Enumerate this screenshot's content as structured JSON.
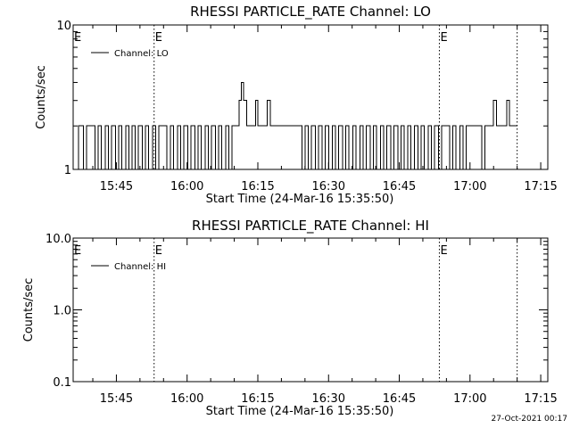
{
  "footer_date": "27-Oct-2021 00:17",
  "chart_data": [
    {
      "type": "line",
      "title": "RHESSI PARTICLE_RATE Channel: LO",
      "xlabel": "Start Time (24-Mar-16 15:35:50)",
      "ylabel": "Counts/sec",
      "y_scale": "log",
      "ylim": [
        1,
        10
      ],
      "y_tick_labels": [
        "1",
        "10"
      ],
      "x_tick_labels": [
        "15:45",
        "16:00",
        "16:15",
        "16:30",
        "16:45",
        "17:00",
        "17:15"
      ],
      "xlim": [
        "15:35:50",
        "17:16:30"
      ],
      "markers": [
        {
          "time": "15:53:00",
          "label": "E"
        },
        {
          "time": "16:53:30",
          "label": "E"
        },
        {
          "time": "17:10:00",
          "label": ""
        }
      ],
      "legend": {
        "position": "top-left",
        "entries": [
          "Channel: LO"
        ]
      },
      "series": [
        {
          "name": "Channel: LO",
          "step_data": [
            [
              "15:35:50",
              1
            ],
            [
              "15:37:00",
              2
            ],
            [
              "15:38:00",
              1
            ],
            [
              "15:38:40",
              2
            ],
            [
              "15:40:30",
              1
            ],
            [
              "15:41:10",
              2
            ],
            [
              "15:41:50",
              1
            ],
            [
              "15:42:40",
              2
            ],
            [
              "15:43:20",
              1
            ],
            [
              "15:44:00",
              2
            ],
            [
              "15:44:50",
              1
            ],
            [
              "15:45:30",
              2
            ],
            [
              "15:46:10",
              1
            ],
            [
              "15:47:00",
              2
            ],
            [
              "15:47:40",
              1
            ],
            [
              "15:48:20",
              2
            ],
            [
              "15:49:00",
              1
            ],
            [
              "15:49:40",
              2
            ],
            [
              "15:50:30",
              1
            ],
            [
              "15:51:10",
              2
            ],
            [
              "15:51:50",
              1
            ],
            [
              "15:52:40",
              2
            ],
            [
              "15:53:20",
              1
            ],
            [
              "15:54:00",
              2
            ],
            [
              "15:55:40",
              1
            ],
            [
              "15:56:30",
              2
            ],
            [
              "15:57:10",
              1
            ],
            [
              "15:58:00",
              2
            ],
            [
              "15:58:40",
              1
            ],
            [
              "15:59:20",
              2
            ],
            [
              "16:00:10",
              1
            ],
            [
              "16:00:50",
              2
            ],
            [
              "16:01:40",
              1
            ],
            [
              "16:02:20",
              2
            ],
            [
              "16:03:00",
              1
            ],
            [
              "16:03:50",
              2
            ],
            [
              "16:04:30",
              1
            ],
            [
              "16:05:10",
              2
            ],
            [
              "16:06:00",
              1
            ],
            [
              "16:06:40",
              2
            ],
            [
              "16:07:20",
              1
            ],
            [
              "16:08:10",
              2
            ],
            [
              "16:08:50",
              1
            ],
            [
              "16:09:30",
              2
            ],
            [
              "16:11:00",
              3
            ],
            [
              "16:11:30",
              4
            ],
            [
              "16:12:00",
              3
            ],
            [
              "16:12:40",
              2
            ],
            [
              "16:14:30",
              3
            ],
            [
              "16:15:00",
              2
            ],
            [
              "16:17:00",
              3
            ],
            [
              "16:17:40",
              2
            ],
            [
              "16:24:20",
              1
            ],
            [
              "16:25:00",
              2
            ],
            [
              "16:25:40",
              1
            ],
            [
              "16:26:20",
              2
            ],
            [
              "16:27:10",
              1
            ],
            [
              "16:27:50",
              2
            ],
            [
              "16:28:40",
              1
            ],
            [
              "16:29:20",
              2
            ],
            [
              "16:30:00",
              1
            ],
            [
              "16:30:50",
              2
            ],
            [
              "16:31:30",
              1
            ],
            [
              "16:32:10",
              2
            ],
            [
              "16:33:00",
              1
            ],
            [
              "16:33:40",
              2
            ],
            [
              "16:34:20",
              1
            ],
            [
              "16:35:10",
              2
            ],
            [
              "16:35:50",
              1
            ],
            [
              "16:36:40",
              2
            ],
            [
              "16:37:20",
              1
            ],
            [
              "16:38:00",
              2
            ],
            [
              "16:38:50",
              1
            ],
            [
              "16:39:30",
              2
            ],
            [
              "16:40:10",
              1
            ],
            [
              "16:41:00",
              2
            ],
            [
              "16:41:40",
              1
            ],
            [
              "16:42:20",
              2
            ],
            [
              "16:43:10",
              1
            ],
            [
              "16:43:50",
              2
            ],
            [
              "16:44:40",
              1
            ],
            [
              "16:45:20",
              2
            ],
            [
              "16:46:00",
              1
            ],
            [
              "16:46:50",
              2
            ],
            [
              "16:47:30",
              1
            ],
            [
              "16:48:10",
              2
            ],
            [
              "16:49:00",
              1
            ],
            [
              "16:49:40",
              2
            ],
            [
              "16:50:20",
              1
            ],
            [
              "16:51:10",
              2
            ],
            [
              "16:51:50",
              1
            ],
            [
              "16:52:30",
              2
            ],
            [
              "16:53:20",
              1
            ],
            [
              "16:54:00",
              2
            ],
            [
              "16:55:40",
              1
            ],
            [
              "16:56:20",
              2
            ],
            [
              "16:57:00",
              1
            ],
            [
              "16:57:50",
              2
            ],
            [
              "16:58:30",
              1
            ],
            [
              "16:59:10",
              2
            ],
            [
              "17:02:30",
              1
            ],
            [
              "17:03:10",
              2
            ],
            [
              "17:05:00",
              3
            ],
            [
              "17:05:40",
              2
            ],
            [
              "17:07:50",
              3
            ],
            [
              "17:08:20",
              2
            ],
            [
              "17:10:00",
              2
            ]
          ]
        }
      ]
    },
    {
      "type": "line",
      "title": "RHESSI PARTICLE_RATE Channel: HI",
      "xlabel": "Start Time (24-Mar-16 15:35:50)",
      "ylabel": "Counts/sec",
      "y_scale": "log",
      "ylim": [
        0.1,
        10
      ],
      "y_tick_labels": [
        "0.1",
        "1.0",
        "10.0"
      ],
      "x_tick_labels": [
        "15:45",
        "16:00",
        "16:15",
        "16:30",
        "16:45",
        "17:00",
        "17:15"
      ],
      "xlim": [
        "15:35:50",
        "17:16:30"
      ],
      "markers": [
        {
          "time": "15:53:00",
          "label": "E"
        },
        {
          "time": "16:53:30",
          "label": "E"
        },
        {
          "time": "17:10:00",
          "label": ""
        }
      ],
      "legend": {
        "position": "top-left",
        "entries": [
          "Channel: HI"
        ]
      },
      "series": [
        {
          "name": "Channel: HI",
          "step_data": []
        }
      ]
    }
  ]
}
